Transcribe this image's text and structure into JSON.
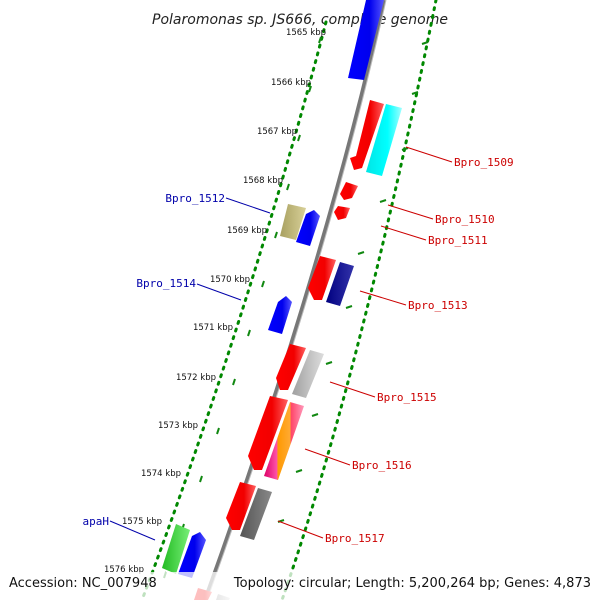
{
  "title": "Polaromonas sp. JS666, complete genome",
  "footer": {
    "accession": "Accession: NC_007948",
    "topology": "Topology: circular; Length: 5,200,264 bp; Genes: 4,873"
  },
  "ticks": [
    "1565 kbp",
    "1566 kbp",
    "1567 kbp",
    "1568 kbp",
    "1569 kbp",
    "1570 kbp",
    "1571 kbp",
    "1572 kbp",
    "1573 kbp",
    "1574 kbp",
    "1575 kbp",
    "1576 kbp"
  ],
  "genes": [
    {
      "name": "Bpro_1509",
      "color": "#cc0000"
    },
    {
      "name": "Bpro_1510",
      "color": "#cc0000"
    },
    {
      "name": "Bpro_1511",
      "color": "#cc0000"
    },
    {
      "name": "Bpro_1512",
      "color": "#0000aa"
    },
    {
      "name": "Bpro_1513",
      "color": "#cc0000"
    },
    {
      "name": "Bpro_1514",
      "color": "#0000aa"
    },
    {
      "name": "Bpro_1515",
      "color": "#cc0000"
    },
    {
      "name": "Bpro_1516",
      "color": "#cc0000"
    },
    {
      "name": "Bpro_1517",
      "color": "#cc0000"
    },
    {
      "name": "apaH",
      "color": "#0000aa"
    }
  ]
}
